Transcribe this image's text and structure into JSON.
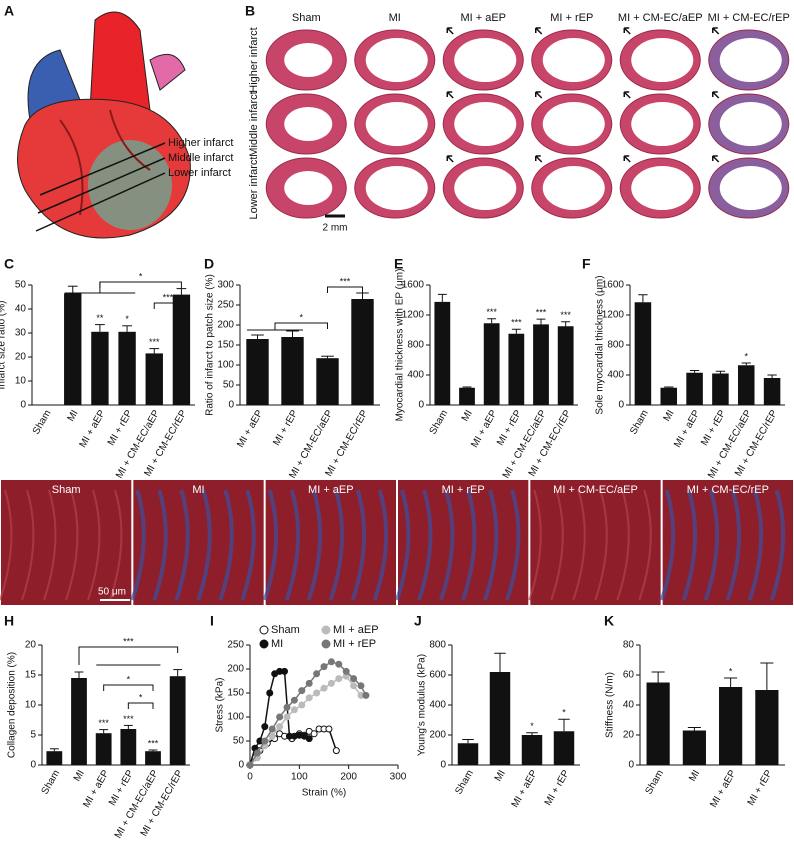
{
  "panel_a": {
    "label": "A",
    "levels": [
      "Higher infarct",
      "Middle infarct",
      "Lower infarct"
    ]
  },
  "panel_b": {
    "label": "B",
    "columns": [
      "Sham",
      "MI",
      "MI + aEP",
      "MI + rEP",
      "MI + CM-EC/aEP",
      "MI + CM-EC/rEP"
    ],
    "rows": [
      "Higher infarct",
      "Middle infarct",
      "Lower infarct"
    ],
    "scale": "2 mm"
  },
  "panel_g": {
    "label": "G",
    "columns": [
      "Sham",
      "MI",
      "MI + aEP",
      "MI + rEP",
      "MI + CM-EC/aEP",
      "MI + CM-EC/rEP"
    ],
    "scale": "50 μm"
  },
  "chart_data": [
    {
      "type": "bar",
      "panel": "C",
      "ylabel": "Infarct size ratio (%)",
      "categories": [
        "Sham",
        "MI",
        "MI + aEP",
        "MI + rEP",
        "MI + CM-EC/aEP",
        "MI + CM-EC/rEP"
      ],
      "values": [
        0,
        46.5,
        30.5,
        30.5,
        21.5,
        46
      ],
      "errors": [
        null,
        3,
        3,
        2.5,
        2,
        2.5
      ],
      "significance": [
        null,
        null,
        "**",
        "*",
        "***",
        null
      ],
      "brackets": [
        "*",
        "***"
      ],
      "color": "#111111",
      "ylim": [
        0,
        50
      ],
      "yticks": [
        0,
        10,
        20,
        30,
        40,
        50
      ]
    },
    {
      "type": "bar",
      "panel": "D",
      "ylabel": "Ratio of infarct to patch size (%)",
      "categories": [
        "MI + aEP",
        "MI + rEP",
        "MI + CM-EC/aEP",
        "MI + CM-EC/rEP"
      ],
      "values": [
        165,
        170,
        117,
        265
      ],
      "errors": [
        10,
        15,
        5,
        15
      ],
      "significance": [
        null,
        null,
        null,
        null
      ],
      "brackets": [
        "*",
        "***"
      ],
      "color": "#111111",
      "ylim": [
        0,
        300
      ],
      "yticks": [
        0,
        50,
        100,
        150,
        200,
        250,
        300
      ]
    },
    {
      "type": "bar",
      "panel": "E",
      "ylabel": "Myocardial thickness with EP (μm)",
      "categories": [
        "Sham",
        "MI",
        "MI + aEP",
        "MI + rEP",
        "MI + CM-EC/aEP",
        "MI + CM-EC/rEP"
      ],
      "values": [
        1375,
        230,
        1090,
        950,
        1075,
        1050
      ],
      "errors": [
        100,
        10,
        60,
        60,
        70,
        60
      ],
      "significance": [
        null,
        null,
        "***",
        "***",
        "***",
        "***"
      ],
      "brackets": [],
      "color": "#111111",
      "ylim": [
        0,
        1600
      ],
      "yticks": [
        0,
        400,
        800,
        1200,
        1600
      ]
    },
    {
      "type": "bar",
      "panel": "F",
      "ylabel": "Sole myocardial thickness (μm)",
      "categories": [
        "Sham",
        "MI",
        "MI + aEP",
        "MI + rEP",
        "MI + CM-EC/aEP",
        "MI + CM-EC/rEP"
      ],
      "values": [
        1370,
        230,
        430,
        420,
        530,
        360
      ],
      "errors": [
        100,
        10,
        30,
        30,
        30,
        40
      ],
      "significance": [
        null,
        null,
        null,
        null,
        "*",
        null
      ],
      "brackets": [],
      "color": "#111111",
      "ylim": [
        0,
        1600
      ],
      "yticks": [
        0,
        400,
        800,
        1200,
        1600
      ]
    },
    {
      "type": "bar",
      "panel": "H",
      "ylabel": "Collagen deposition (%)",
      "categories": [
        "Sham",
        "MI",
        "MI + aEP",
        "MI + rEP",
        "MI + CM-EC/aEP",
        "MI + CM-EC/rEP"
      ],
      "values": [
        2.3,
        14.5,
        5.3,
        6,
        2.3,
        14.8
      ],
      "errors": [
        0.4,
        1,
        0.6,
        0.6,
        0.2,
        1.1
      ],
      "significance": [
        null,
        null,
        "***",
        "***",
        "***",
        null
      ],
      "brackets": [
        "***",
        "*",
        "*"
      ],
      "color": "#111111",
      "ylim": [
        0,
        20
      ],
      "yticks": [
        0,
        5,
        10,
        15,
        20
      ]
    },
    {
      "type": "line",
      "panel": "I",
      "xlabel": "Strain (%)",
      "ylabel": "Stress (kPa)",
      "xlim": [
        0,
        300
      ],
      "xticks": [
        0,
        100,
        200,
        300
      ],
      "ylim": [
        0,
        250
      ],
      "yticks": [
        0,
        50,
        100,
        150,
        200,
        250
      ],
      "series": [
        {
          "name": "Sham",
          "color": "#111111",
          "fill": "#ffffff",
          "x": [
            0,
            10,
            20,
            35,
            50,
            60,
            70,
            85,
            100,
            110,
            120,
            130,
            140,
            150,
            160,
            175
          ],
          "values": [
            0,
            15,
            30,
            45,
            55,
            65,
            60,
            55,
            65,
            62,
            70,
            65,
            75,
            75,
            75,
            30
          ]
        },
        {
          "name": "MI",
          "color": "#111111",
          "fill": "#111111",
          "x": [
            0,
            10,
            20,
            30,
            40,
            50,
            60,
            70,
            80,
            90,
            100,
            110,
            120
          ],
          "values": [
            0,
            35,
            50,
            80,
            150,
            190,
            195,
            195,
            60,
            60,
            62,
            60,
            55
          ]
        },
        {
          "name": "MI + aEP",
          "color": "#bbbbbb",
          "fill": "#bbbbbb",
          "x": [
            0,
            15,
            30,
            45,
            60,
            75,
            90,
            105,
            120,
            135,
            150,
            165,
            180,
            195,
            210,
            225
          ],
          "values": [
            0,
            15,
            40,
            60,
            80,
            100,
            115,
            125,
            140,
            150,
            160,
            170,
            180,
            185,
            165,
            145
          ]
        },
        {
          "name": "MI + rEP",
          "color": "#777777",
          "fill": "#777777",
          "x": [
            0,
            15,
            30,
            45,
            60,
            75,
            90,
            105,
            120,
            135,
            150,
            165,
            180,
            195,
            210,
            225,
            235
          ],
          "values": [
            0,
            25,
            50,
            75,
            100,
            120,
            135,
            155,
            170,
            190,
            205,
            215,
            210,
            195,
            180,
            165,
            145
          ]
        }
      ]
    },
    {
      "type": "bar",
      "panel": "J",
      "ylabel": "Young's modulus (kPa)",
      "categories": [
        "Sham",
        "MI",
        "MI + aEP",
        "MI + rEP"
      ],
      "values": [
        145,
        620,
        200,
        225
      ],
      "errors": [
        25,
        125,
        15,
        80
      ],
      "significance": [
        null,
        null,
        "*",
        "*"
      ],
      "brackets": [],
      "color": "#111111",
      "ylim": [
        0,
        800
      ],
      "yticks": [
        0,
        200,
        400,
        600,
        800
      ]
    },
    {
      "type": "bar",
      "panel": "K",
      "ylabel": "Stiffness (N/m)",
      "categories": [
        "Sham",
        "MI",
        "MI + aEP",
        "MI + rEP"
      ],
      "values": [
        55,
        23,
        52,
        50
      ],
      "errors": [
        7,
        2,
        6,
        18
      ],
      "significance": [
        null,
        null,
        "*",
        null
      ],
      "brackets": [],
      "color": "#111111",
      "ylim": [
        0,
        80
      ],
      "yticks": [
        0,
        20,
        40,
        60,
        80
      ]
    }
  ]
}
